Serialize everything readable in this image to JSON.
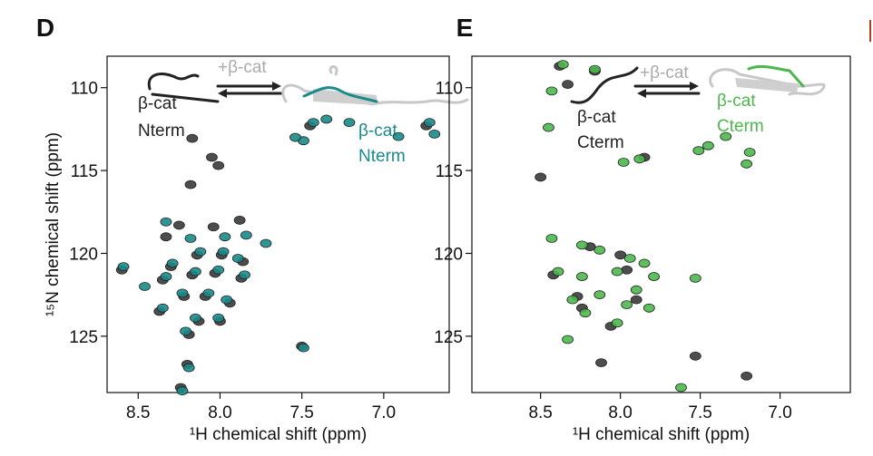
{
  "chart_data": [
    {
      "type": "scatter",
      "panel_label": "D",
      "xlabel": "¹H chemical shift (ppm)",
      "ylabel": "¹⁵N chemical shift (ppm)",
      "xlim": [
        8.69,
        6.6
      ],
      "ylim": [
        108.1,
        128.4
      ],
      "xticks": [
        8.5,
        {
          "value": 8.0,
          "label": "8.0"
        },
        7.5,
        {
          "value": 7.0,
          "label": "7.0"
        }
      ],
      "yticks": [
        110,
        115,
        120,
        125
      ],
      "annotations": [
        {
          "text": "+β-cat",
          "color": "#aaaaaa"
        },
        {
          "text": "β-cat",
          "color": "#222222"
        },
        {
          "text": "Nterm",
          "color": "#222222"
        },
        {
          "text": "β-cat",
          "color": "#1a8a8a"
        },
        {
          "text": "Nterm",
          "color": "#1a8a8a"
        }
      ],
      "series": [
        {
          "color": "#3a3a3a",
          "x": [
            8.17,
            8.05,
            8.01,
            8.18,
            8.25,
            8.04,
            7.88,
            8.33,
            8.6,
            8.3,
            8.14,
            7.99,
            7.86,
            8.35,
            8.17,
            8.03,
            7.87,
            8.22,
            8.09,
            7.94,
            8.37,
            8.13,
            8.0,
            8.19,
            7.5,
            8.2,
            8.24,
            7.45,
            6.74
          ],
          "values": [
            113.06,
            114.2,
            114.7,
            115.85,
            118.3,
            118.4,
            118.0,
            119.0,
            121.0,
            120.8,
            120.1,
            120.1,
            120.5,
            121.6,
            121.3,
            121.2,
            121.5,
            122.6,
            122.6,
            123.0,
            123.5,
            124.1,
            124.1,
            124.9,
            125.6,
            126.7,
            128.1,
            112.3,
            112.3
          ]
        },
        {
          "color": "#1a8a8a",
          "x": [
            8.59,
            8.33,
            8.18,
            7.97,
            7.84,
            7.72,
            8.29,
            8.12,
            7.98,
            7.89,
            8.33,
            8.15,
            8.01,
            7.85,
            8.46,
            8.23,
            8.07,
            7.96,
            8.35,
            8.15,
            8.01,
            8.21,
            7.49,
            8.19,
            8.23,
            7.43,
            7.35,
            7.49,
            7.21,
            6.72,
            6.69,
            6.91,
            7.54
          ],
          "values": [
            120.8,
            118.1,
            119.1,
            119.0,
            118.9,
            119.4,
            120.6,
            119.9,
            119.9,
            120.3,
            121.4,
            121.1,
            121.0,
            121.3,
            122.0,
            122.4,
            122.4,
            122.8,
            123.3,
            123.9,
            123.9,
            124.7,
            125.7,
            126.9,
            128.3,
            112.1,
            111.9,
            113.2,
            112.1,
            112.1,
            112.8,
            112.95,
            113.0
          ]
        }
      ]
    },
    {
      "type": "scatter",
      "panel_label": "E",
      "xlabel": "¹H chemical shift (ppm)",
      "xlim": [
        8.93,
        6.56
      ],
      "ylim": [
        108.1,
        128.4
      ],
      "xticks": [
        8.5,
        {
          "value": 8.0,
          "label": "8.0"
        },
        7.5,
        {
          "value": 7.0,
          "label": "7.0"
        }
      ],
      "yticks": [
        110,
        115,
        120,
        125
      ],
      "annotations": [
        {
          "text": "+β-cat",
          "color": "#aaaaaa"
        },
        {
          "text": "β-cat",
          "color": "#222222"
        },
        {
          "text": "Cterm",
          "color": "#222222"
        },
        {
          "text": "β-cat",
          "color": "#4cb84c"
        },
        {
          "text": "Cterm",
          "color": "#4cb84c"
        }
      ],
      "series": [
        {
          "color": "#3a3a3a",
          "x": [
            8.5,
            8.33,
            8.19,
            8.12,
            7.53,
            7.21,
            8.0,
            8.24,
            7.9,
            8.38,
            8.16,
            7.85,
            8.42,
            8.27,
            7.96,
            8.06
          ],
          "values": [
            115.4,
            109.8,
            119.6,
            126.6,
            126.2,
            127.4,
            120.1,
            123.3,
            122.8,
            108.7,
            109.0,
            114.2,
            121.3,
            122.6,
            121.0,
            124.4
          ]
        },
        {
          "color": "#4cb84c",
          "x": [
            8.36,
            8.16,
            8.43,
            8.45,
            7.34,
            7.45,
            7.51,
            7.19,
            7.21,
            7.98,
            7.88,
            8.43,
            8.24,
            8.13,
            7.94,
            7.85,
            8.39,
            8.24,
            8.02,
            7.9,
            7.79,
            7.53,
            8.3,
            8.13,
            7.96,
            7.82,
            8.22,
            8.02,
            8.33,
            7.62
          ],
          "values": [
            108.6,
            108.9,
            110.2,
            112.4,
            112.95,
            113.5,
            113.8,
            113.9,
            114.6,
            114.5,
            114.3,
            119.1,
            119.5,
            119.8,
            120.3,
            120.6,
            121.1,
            121.4,
            121.1,
            122.2,
            121.4,
            121.5,
            122.8,
            122.5,
            123.1,
            123.3,
            123.6,
            124.2,
            125.2,
            128.1
          ]
        }
      ]
    }
  ]
}
